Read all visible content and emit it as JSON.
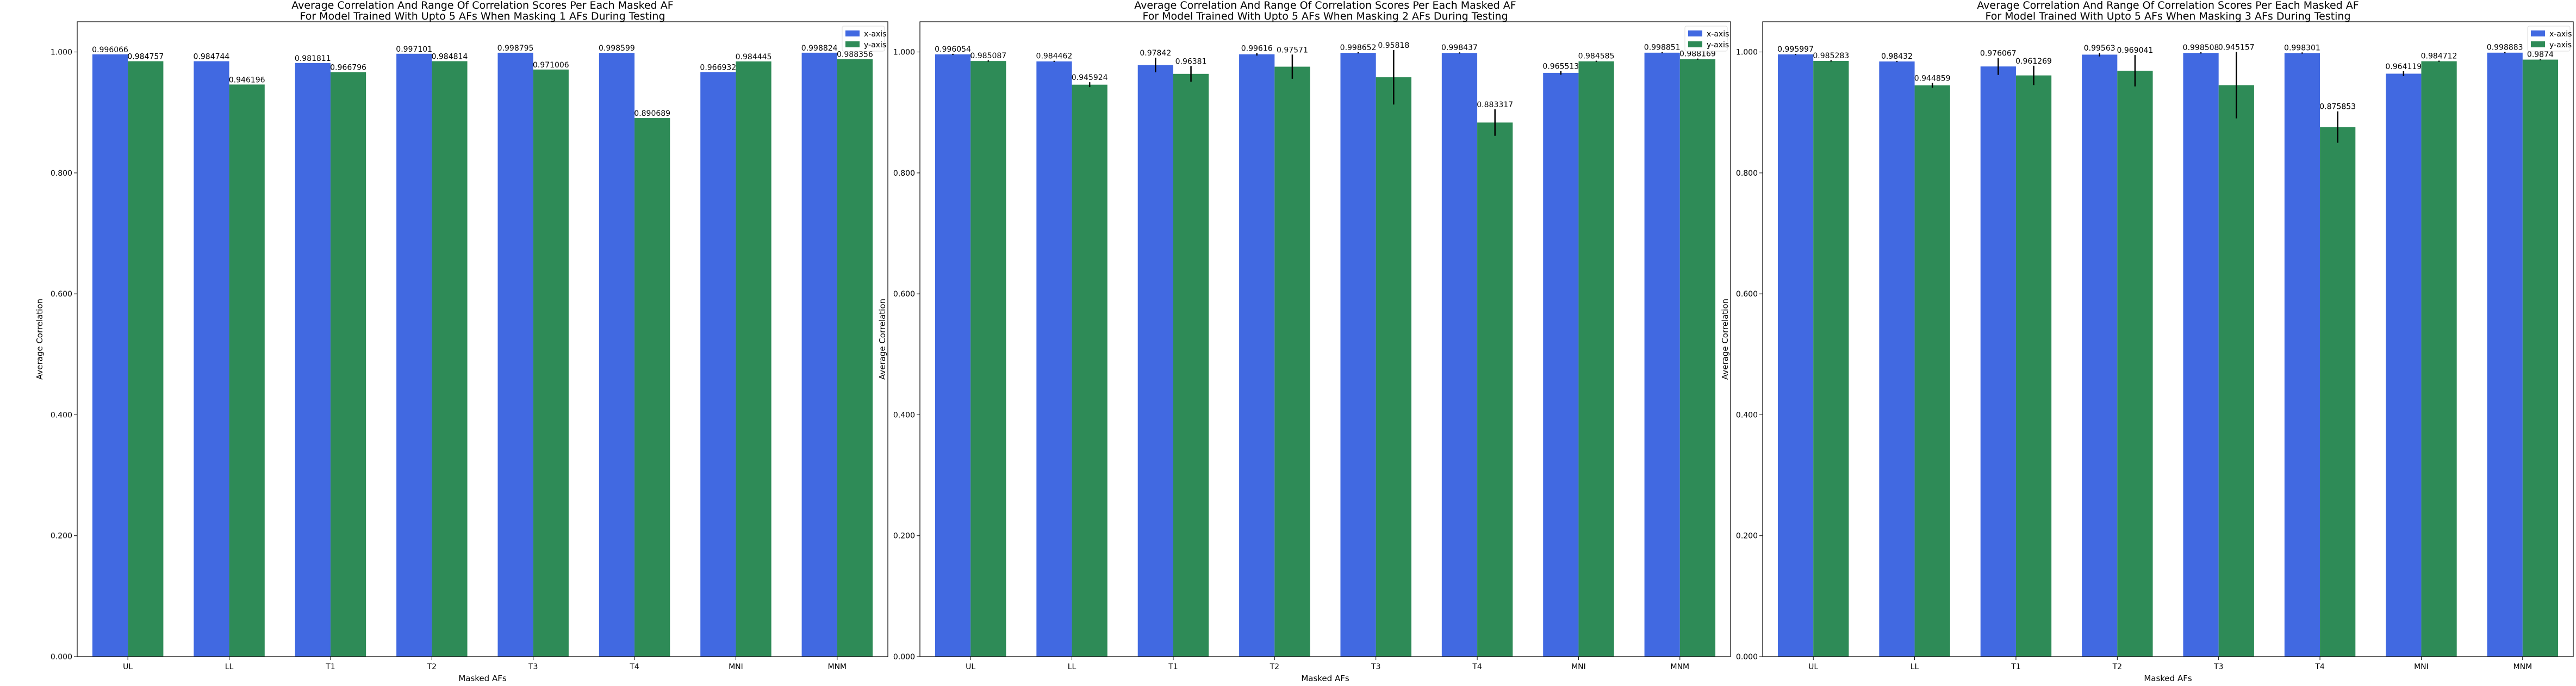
{
  "chart_data": [
    {
      "type": "bar",
      "title_lines": [
        "Average Correlation And Range Of Correlation Scores Per Each Masked AF",
        "For Model Trained With Upto 5 AFs When Masking 1 AFs During Testing"
      ],
      "xlabel": "Masked AFs",
      "ylabel": "Average Correlation",
      "categories": [
        "UL",
        "LL",
        "T1",
        "T2",
        "T3",
        "T4",
        "MNI",
        "MNM"
      ],
      "ylim": [
        0,
        1.05
      ],
      "yticks": [
        0,
        0.2,
        0.4,
        0.6,
        0.8,
        1.0
      ],
      "ytick_labels": [
        "0.000",
        "0.200",
        "0.400",
        "0.600",
        "0.800",
        "1.000"
      ],
      "legend_position": "top-right",
      "series": [
        {
          "name": "x-axis",
          "color": "#4169e1",
          "values": [
            0.996066,
            0.984744,
            0.981811,
            0.997101,
            0.998795,
            0.998599,
            0.966932,
            0.998824
          ],
          "labels": [
            "0.996066",
            "0.984744",
            "0.981811",
            "0.997101",
            "0.998795",
            "0.998599",
            "0.966932",
            "0.998824"
          ],
          "err": [
            0,
            0,
            0,
            0,
            0,
            0,
            0,
            0
          ]
        },
        {
          "name": "y-axis",
          "color": "#2e8b57",
          "values": [
            0.984757,
            0.946196,
            0.966796,
            0.984814,
            0.971006,
            0.890689,
            0.984445,
            0.988356
          ],
          "labels": [
            "0.984757",
            "0.946196",
            "0.966796",
            "0.984814",
            "0.971006",
            "0.890689",
            "0.984445",
            "0.988356"
          ],
          "err": [
            0,
            0,
            0,
            0,
            0,
            0,
            0,
            0
          ]
        }
      ]
    },
    {
      "type": "bar",
      "title_lines": [
        "Average Correlation And Range Of Correlation Scores Per Each Masked AF",
        "For Model Trained With Upto 5 AFs When Masking 2 AFs During Testing"
      ],
      "xlabel": "Masked AFs",
      "ylabel": "Average Correlation",
      "categories": [
        "UL",
        "LL",
        "T1",
        "T2",
        "T3",
        "T4",
        "MNI",
        "MNM"
      ],
      "ylim": [
        0,
        1.05
      ],
      "yticks": [
        0,
        0.2,
        0.4,
        0.6,
        0.8,
        1.0
      ],
      "ytick_labels": [
        "0.000",
        "0.200",
        "0.400",
        "0.600",
        "0.800",
        "1.000"
      ],
      "legend_position": "top-right",
      "series": [
        {
          "name": "x-axis",
          "color": "#4169e1",
          "values": [
            0.996054,
            0.984462,
            0.97842,
            0.99616,
            0.998652,
            0.998437,
            0.965513,
            0.998851
          ],
          "labels": [
            "0.996054",
            "0.984462",
            "0.97842",
            "0.99616",
            "0.998652",
            "0.998437",
            "0.965513",
            "0.998851"
          ],
          "err": [
            0.001,
            0.001,
            0.012,
            0.002,
            0.001,
            0.001,
            0.003,
            0.001
          ]
        },
        {
          "name": "y-axis",
          "color": "#2e8b57",
          "values": [
            0.985087,
            0.945924,
            0.96381,
            0.97571,
            0.95818,
            0.883317,
            0.984585,
            0.988169
          ],
          "labels": [
            "0.985087",
            "0.945924",
            "0.96381",
            "0.97571",
            "0.95818",
            "0.883317",
            "0.984585",
            "0.988169"
          ],
          "err": [
            0.001,
            0.004,
            0.013,
            0.02,
            0.045,
            0.022,
            0.001,
            0.001
          ]
        }
      ]
    },
    {
      "type": "bar",
      "title_lines": [
        "Average Correlation And Range Of Correlation Scores Per Each Masked AF",
        "For Model Trained With Upto 5 AFs When Masking 3 AFs During Testing"
      ],
      "xlabel": "Masked AFs",
      "ylabel": "Average Correlation",
      "categories": [
        "UL",
        "LL",
        "T1",
        "T2",
        "T3",
        "T4",
        "MNI",
        "MNM"
      ],
      "ylim": [
        0,
        1.05
      ],
      "yticks": [
        0,
        0.2,
        0.4,
        0.6,
        0.8,
        1.0
      ],
      "ytick_labels": [
        "0.000",
        "0.200",
        "0.400",
        "0.600",
        "0.800",
        "1.000"
      ],
      "legend_position": "top-right",
      "series": [
        {
          "name": "x-axis",
          "color": "#4169e1",
          "values": [
            0.995997,
            0.98432,
            0.976067,
            0.99563,
            0.998508,
            0.998301,
            0.964119,
            0.998883
          ],
          "labels": [
            "0.995997",
            "0.98432",
            "0.976067",
            "0.99563",
            "0.998508",
            "0.998301",
            "0.964119",
            "0.998883"
          ],
          "err": [
            0.001,
            0.001,
            0.014,
            0.003,
            0.001,
            0.001,
            0.004,
            0.001
          ]
        },
        {
          "name": "y-axis",
          "color": "#2e8b57",
          "values": [
            0.985283,
            0.944859,
            0.961269,
            0.969041,
            0.945157,
            0.875853,
            0.984712,
            0.9874
          ],
          "labels": [
            "0.985283",
            "0.944859",
            "0.961269",
            "0.969041",
            "0.945157",
            "0.875853",
            "0.984712",
            "0.9874"
          ],
          "err": [
            0.001,
            0.004,
            0.016,
            0.026,
            0.055,
            0.026,
            0.001,
            0.001
          ]
        }
      ]
    }
  ]
}
